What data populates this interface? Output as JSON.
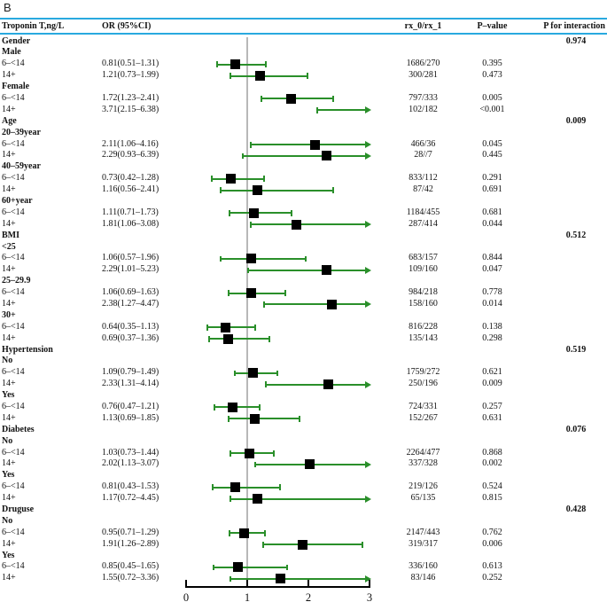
{
  "figure_label": "B",
  "header": {
    "troponin": "Troponin T,ng/L",
    "or_ci": "OR (95%CI)",
    "rx": "rx_0/rx_1",
    "p_value": "P–value",
    "p_interaction": "P for interaction"
  },
  "colors": {
    "ci_green": "#2a8f2a",
    "header_rule_blue": "#29a9df",
    "reference_line_gray": "#b8b8b8",
    "marker_black": "#000000"
  },
  "chart_data": {
    "type": "forest",
    "x_axis": {
      "ticks": [
        0,
        1,
        2,
        3
      ],
      "range": [
        0,
        3
      ],
      "reference_line": 1
    },
    "legend": "none",
    "rows": [
      {
        "type": "group",
        "label": "Gender",
        "p_int": "0.974"
      },
      {
        "type": "subgroup",
        "label": "Male"
      },
      {
        "type": "data",
        "label": "6–<14",
        "or_text": "0.81(0.51–1.31)",
        "or": 0.81,
        "lo": 0.51,
        "hi": 1.31,
        "rx": "1686/270",
        "p": "0.395"
      },
      {
        "type": "data",
        "label": "14+",
        "or_text": "1.21(0.73–1.99)",
        "or": 1.21,
        "lo": 0.73,
        "hi": 1.99,
        "rx": "300/281",
        "p": "0.473"
      },
      {
        "type": "subgroup",
        "label": "Female"
      },
      {
        "type": "data",
        "label": "6–<14",
        "or_text": "1.72(1.23–2.41)",
        "or": 1.72,
        "lo": 1.23,
        "hi": 2.41,
        "rx": "797/333",
        "p": "0.005"
      },
      {
        "type": "data",
        "label": "14+",
        "or_text": "3.71(2.15–6.38)",
        "or": 3.71,
        "lo": 2.15,
        "hi": 6.38,
        "rx": "102/182",
        "p": "<0.001"
      },
      {
        "type": "group",
        "label": "Age",
        "p_int": "0.009"
      },
      {
        "type": "subgroup",
        "label": "20–39year"
      },
      {
        "type": "data",
        "label": "6–<14",
        "or_text": "2.11(1.06–4.16)",
        "or": 2.11,
        "lo": 1.06,
        "hi": 4.16,
        "rx": "466/36",
        "p": "0.045"
      },
      {
        "type": "data",
        "label": "14+",
        "or_text": "2.29(0.93–6.39)",
        "or": 2.29,
        "lo": 0.93,
        "hi": 6.39,
        "rx": "28//7",
        "p": "0.445"
      },
      {
        "type": "subgroup",
        "label": "40–59year"
      },
      {
        "type": "data",
        "label": "6–<14",
        "or_text": "0.73(0.42–1.28)",
        "or": 0.73,
        "lo": 0.42,
        "hi": 1.28,
        "rx": "833/112",
        "p": "0.291"
      },
      {
        "type": "data",
        "label": "14+",
        "or_text": "1.16(0.56–2.41)",
        "or": 1.16,
        "lo": 0.56,
        "hi": 2.41,
        "rx": "87/42",
        "p": "0.691"
      },
      {
        "type": "subgroup",
        "label": "60+year"
      },
      {
        "type": "data",
        "label": "6–<14",
        "or_text": "1.11(0.71–1.73)",
        "or": 1.11,
        "lo": 0.71,
        "hi": 1.73,
        "rx": "1184/455",
        "p": "0.681"
      },
      {
        "type": "data",
        "label": "14+",
        "or_text": "1.81(1.06–3.08)",
        "or": 1.81,
        "lo": 1.06,
        "hi": 3.08,
        "rx": "287/414",
        "p": "0.044"
      },
      {
        "type": "group",
        "label": "BMI",
        "p_int": "0.512"
      },
      {
        "type": "subgroup",
        "label": "<25"
      },
      {
        "type": "data",
        "label": "6–<14",
        "or_text": "1.06(0.57–1.96)",
        "or": 1.06,
        "lo": 0.57,
        "hi": 1.96,
        "rx": "683/157",
        "p": "0.844"
      },
      {
        "type": "data",
        "label": "14+",
        "or_text": "2.29(1.01–5.23)",
        "or": 2.29,
        "lo": 1.01,
        "hi": 5.23,
        "rx": "109/160",
        "p": "0.047"
      },
      {
        "type": "subgroup",
        "label": "25–29.9"
      },
      {
        "type": "data",
        "label": "6–<14",
        "or_text": "1.06(0.69–1.63)",
        "or": 1.06,
        "lo": 0.69,
        "hi": 1.63,
        "rx": "984/218",
        "p": "0.778"
      },
      {
        "type": "data",
        "label": "14+",
        "or_text": "2.38(1.27–4.47)",
        "or": 2.38,
        "lo": 1.27,
        "hi": 4.47,
        "rx": "158/160",
        "p": "0.014"
      },
      {
        "type": "subgroup",
        "label": "30+"
      },
      {
        "type": "data",
        "label": "6–<14",
        "or_text": "0.64(0.35–1.13)",
        "or": 0.64,
        "lo": 0.35,
        "hi": 1.13,
        "rx": "816/228",
        "p": "0.138"
      },
      {
        "type": "data",
        "label": "14+",
        "or_text": "0.69(0.37–1.36)",
        "or": 0.69,
        "lo": 0.37,
        "hi": 1.36,
        "rx": "135/143",
        "p": "0.298"
      },
      {
        "type": "group",
        "label": "Hypertension",
        "p_int": "0.519"
      },
      {
        "type": "subgroup",
        "label": "No"
      },
      {
        "type": "data",
        "label": "6–<14",
        "or_text": "1.09(0.79–1.49)",
        "or": 1.09,
        "lo": 0.79,
        "hi": 1.49,
        "rx": "1759/272",
        "p": "0.621"
      },
      {
        "type": "data",
        "label": "14+",
        "or_text": "2.33(1.31–4.14)",
        "or": 2.33,
        "lo": 1.31,
        "hi": 4.14,
        "rx": "250/196",
        "p": "0.009"
      },
      {
        "type": "subgroup",
        "label": "Yes"
      },
      {
        "type": "data",
        "label": "6–<14",
        "or_text": "0.76(0.47–1.21)",
        "or": 0.76,
        "lo": 0.47,
        "hi": 1.21,
        "rx": "724/331",
        "p": "0.257"
      },
      {
        "type": "data",
        "label": "14+",
        "or_text": "1.13(0.69–1.85)",
        "or": 1.13,
        "lo": 0.69,
        "hi": 1.85,
        "rx": "152/267",
        "p": "0.631"
      },
      {
        "type": "group",
        "label": "Diabetes",
        "p_int": "0.076"
      },
      {
        "type": "subgroup",
        "label": "No"
      },
      {
        "type": "data",
        "label": "6–<14",
        "or_text": "1.03(0.73–1.44)",
        "or": 1.03,
        "lo": 0.73,
        "hi": 1.44,
        "rx": "2264/477",
        "p": "0.868"
      },
      {
        "type": "data",
        "label": "14+",
        "or_text": "2.02(1.13–3.07)",
        "or": 2.02,
        "lo": 1.13,
        "hi": 3.07,
        "rx": "337/328",
        "p": "0.002"
      },
      {
        "type": "subgroup",
        "label": "Yes"
      },
      {
        "type": "data",
        "label": "6–<14",
        "or_text": "0.81(0.43–1.53)",
        "or": 0.81,
        "lo": 0.43,
        "hi": 1.53,
        "rx": "219/126",
        "p": "0.524"
      },
      {
        "type": "data",
        "label": "14+",
        "or_text": "1.17(0.72–4.45)",
        "or": 1.17,
        "lo": 0.72,
        "hi": 4.45,
        "rx": "65/135",
        "p": "0.815"
      },
      {
        "type": "group",
        "label": "Druguse",
        "p_int": "0.428"
      },
      {
        "type": "subgroup",
        "label": "No"
      },
      {
        "type": "data",
        "label": "6–<14",
        "or_text": "0.95(0.71–1.29)",
        "or": 0.95,
        "lo": 0.71,
        "hi": 1.29,
        "rx": "2147/443",
        "p": "0.762"
      },
      {
        "type": "data",
        "label": "14+",
        "or_text": "1.91(1.26–2.89)",
        "or": 1.91,
        "lo": 1.26,
        "hi": 2.89,
        "rx": "319/317",
        "p": "0.006"
      },
      {
        "type": "subgroup",
        "label": "Yes"
      },
      {
        "type": "data",
        "label": "6–<14",
        "or_text": "0.85(0.45–1.65)",
        "or": 0.85,
        "lo": 0.45,
        "hi": 1.65,
        "rx": "336/160",
        "p": "0.613"
      },
      {
        "type": "data",
        "label": "14+",
        "or_text": "1.55(0.72–3.36)",
        "or": 1.55,
        "lo": 0.72,
        "hi": 3.36,
        "rx": "83/146",
        "p": "0.252"
      }
    ]
  }
}
